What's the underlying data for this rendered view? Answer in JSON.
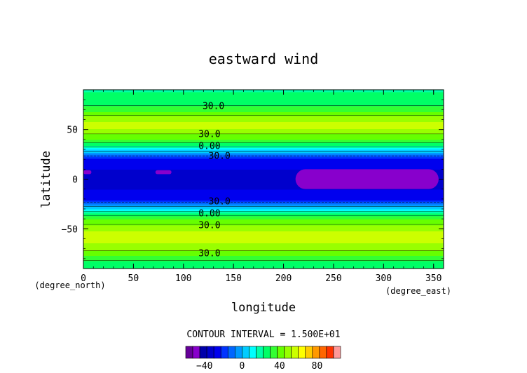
{
  "chart_data": {
    "type": "heatmap",
    "title": "eastward wind",
    "xlabel": "longitude",
    "ylabel": "latitude",
    "x_unit": "(degree_east)",
    "y_unit": "(degree_north)",
    "xlim": [
      0,
      360
    ],
    "ylim": [
      -90,
      90
    ],
    "x_ticks": [
      "0",
      "50",
      "100",
      "150",
      "200",
      "250",
      "300",
      "350"
    ],
    "x_tick_values": [
      0,
      50,
      100,
      150,
      200,
      250,
      300,
      350
    ],
    "y_ticks": [
      "50",
      "0",
      "−50"
    ],
    "y_tick_values": [
      50,
      0,
      -50
    ],
    "contour_interval_text": "CONTOUR INTERVAL = 1.500E+01",
    "contour_labels": [
      {
        "text": "30.0",
        "lon": 130,
        "lat": 74
      },
      {
        "text": "30.0",
        "lon": 126,
        "lat": 46
      },
      {
        "text": "0.00",
        "lon": 126,
        "lat": 34
      },
      {
        "text": "30.0",
        "lon": 136,
        "lat": 24
      },
      {
        "text": "30.0",
        "lon": 136,
        "lat": -22
      },
      {
        "text": "0.00",
        "lon": 126,
        "lat": -34
      },
      {
        "text": "30.0",
        "lon": 126,
        "lat": -46
      },
      {
        "text": "30.0",
        "lon": 126,
        "lat": -74
      }
    ],
    "lat_profile": {
      "lat": [
        -90,
        -80,
        -70,
        -60,
        -50,
        -45,
        -40,
        -36,
        -32,
        -28,
        -24,
        -20,
        -15,
        -10,
        -5,
        0,
        5,
        10,
        15,
        20,
        24,
        28,
        32,
        36,
        40,
        45,
        50,
        55,
        60,
        65,
        70,
        80,
        90
      ],
      "u": [
        22,
        32,
        48,
        55,
        52,
        44,
        38,
        28,
        14,
        2,
        -12,
        -28,
        -30,
        -30,
        -31,
        -32,
        -31,
        -30,
        -30,
        -28,
        -12,
        2,
        14,
        28,
        38,
        44,
        52,
        56,
        50,
        44,
        34,
        24,
        22
      ]
    },
    "anomalies": [
      {
        "lon_range": [
          212,
          355
        ],
        "lat_range": [
          -10,
          10
        ],
        "value": -48
      },
      {
        "lon_range": [
          72,
          88
        ],
        "lat_range": [
          5,
          9
        ],
        "value": -48
      },
      {
        "lon_range": [
          0,
          8
        ],
        "lat_range": [
          5,
          9
        ],
        "value": -48
      }
    ]
  },
  "colorbar": {
    "tick_labels": [
      "−40",
      "0",
      "40",
      "80"
    ],
    "tick_values": [
      -40,
      0,
      40,
      80
    ],
    "levels": [
      -60,
      -52.5,
      -45,
      -37.5,
      -30,
      -22.5,
      -15,
      -7.5,
      0,
      7.5,
      15,
      22.5,
      30,
      37.5,
      45,
      52.5,
      60,
      67.5,
      75,
      82.5,
      90,
      97.5
    ],
    "colors": [
      "#660099",
      "#8800cc",
      "#0000aa",
      "#0000cc",
      "#0000ee",
      "#0033ff",
      "#0066ff",
      "#0099ff",
      "#00ccff",
      "#00ffff",
      "#00ffaa",
      "#00ff66",
      "#33ff33",
      "#66ff00",
      "#99ff00",
      "#ccff00",
      "#ffff00",
      "#ffcc00",
      "#ff9900",
      "#ff6600",
      "#ff3300",
      "#ff9999"
    ]
  }
}
